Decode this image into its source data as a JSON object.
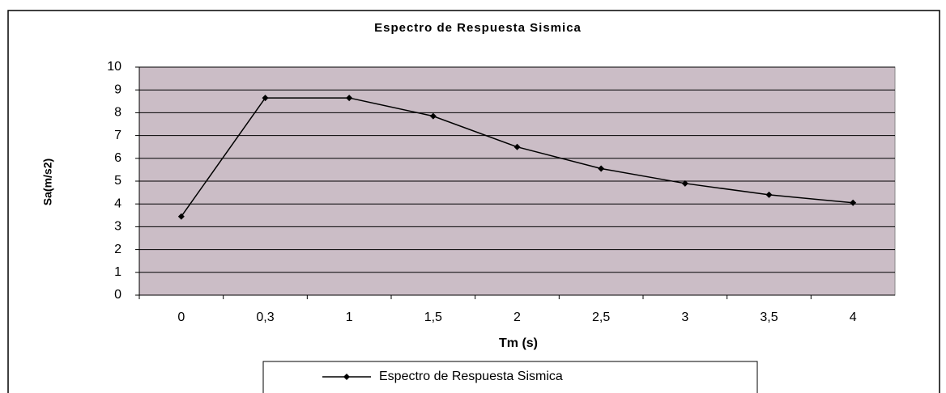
{
  "chart_data": {
    "type": "line",
    "title": "Espectro de Respuesta Sismica",
    "x_label": "Tm (s)",
    "y_label": "Sa(m/s2)",
    "categories": [
      "0",
      "0,3",
      "1",
      "1,5",
      "2",
      "2,5",
      "3",
      "3,5",
      "4"
    ],
    "series": [
      {
        "name": "Espectro de Respuesta Sismica",
        "color": "#000000",
        "values": [
          3.45,
          8.65,
          8.65,
          7.85,
          6.5,
          5.55,
          4.9,
          4.4,
          4.05
        ]
      }
    ],
    "ylim": [
      0,
      10
    ],
    "yticks": [
      0,
      1,
      2,
      3,
      4,
      5,
      6,
      7,
      8,
      9,
      10
    ],
    "grid": true,
    "legend": "bottom"
  }
}
